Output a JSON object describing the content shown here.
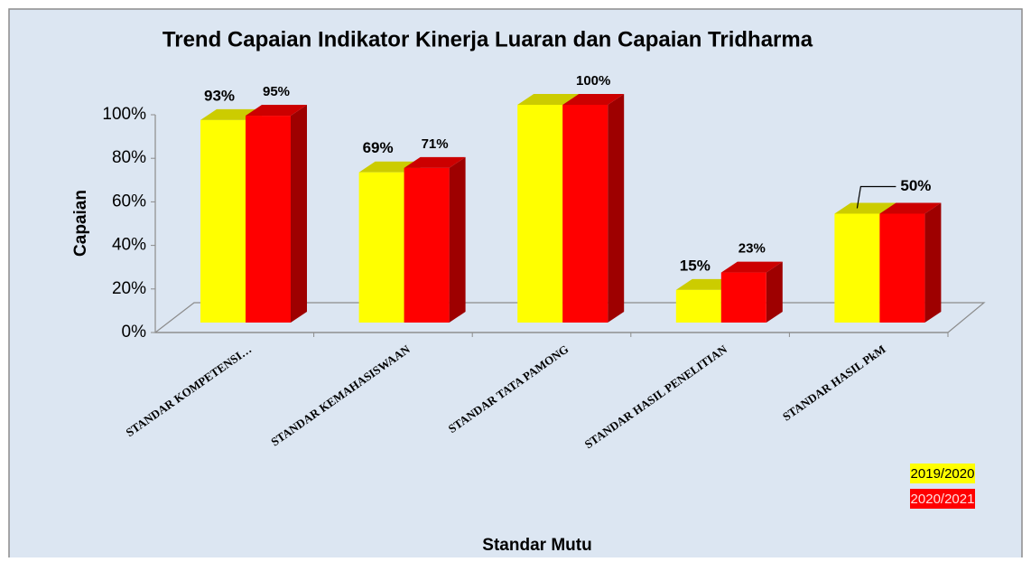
{
  "chart_data": {
    "type": "bar3d",
    "title": "Trend Capaian Indikator Kinerja Luaran dan Capaian Tridharma",
    "x_label": "Standar Mutu",
    "y_label": "Capaian",
    "categories": [
      "STANDAR KOMPETENSI…",
      "STANDAR KEMAHASISWAAN",
      "STANDAR TATA PAMONG",
      "STANDAR HASIL PENELITIAN",
      "STANDAR HASIL PkM"
    ],
    "series": [
      {
        "name": "2019/2020",
        "color": "#ffff00",
        "values": [
          93,
          69,
          100,
          15,
          50
        ],
        "value_labels": [
          "93%",
          "69%",
          null,
          "15%",
          "50%"
        ]
      },
      {
        "name": "2020/2021",
        "color": "#ff0000",
        "values": [
          95,
          71,
          100,
          23,
          50
        ],
        "value_labels": [
          "95%",
          "71%",
          "100%",
          "23%",
          null
        ]
      }
    ],
    "ylim": [
      0,
      100
    ],
    "yticks": [
      {
        "value": 0,
        "label": "0%"
      },
      {
        "value": 20,
        "label": "20%"
      },
      {
        "value": 40,
        "label": "40%"
      },
      {
        "value": 60,
        "label": "60%"
      },
      {
        "value": 80,
        "label": "80%"
      },
      {
        "value": 100,
        "label": "100%"
      }
    ],
    "legend": "bottom-right"
  }
}
